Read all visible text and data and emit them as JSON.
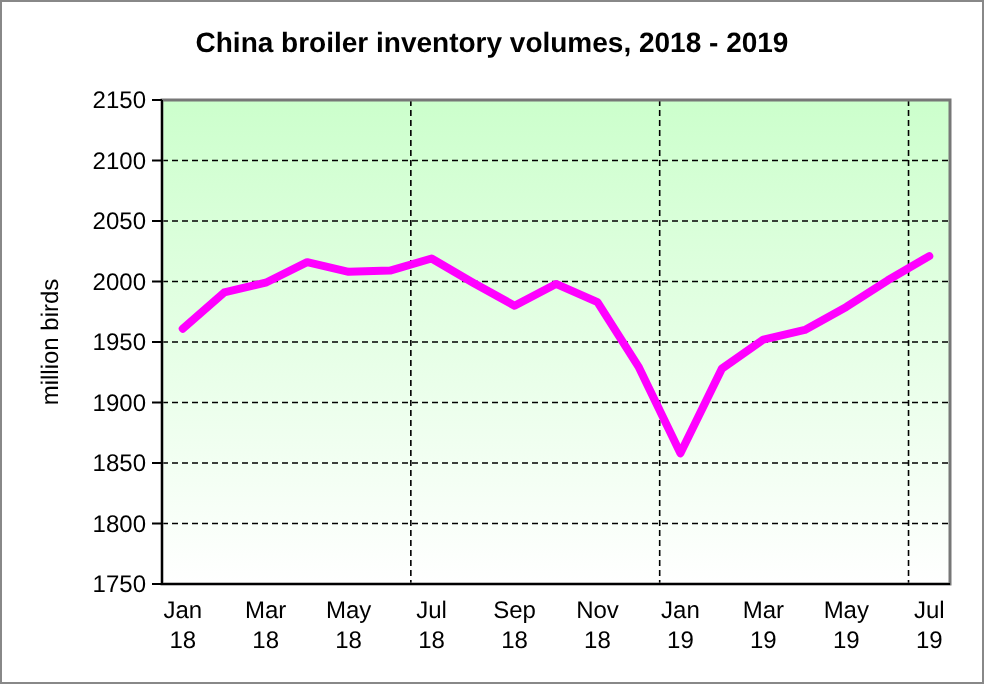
{
  "chart_data": {
    "type": "line",
    "title": "China broiler inventory volumes, 2018 - 2019",
    "ylabel": "million birds",
    "categories": [
      "Jan 18",
      null,
      "Mar 18",
      null,
      "May 18",
      null,
      "Jul 18",
      null,
      "Sep 18",
      null,
      "Nov 18",
      null,
      "Jan 19",
      null,
      "Mar 19",
      null,
      "May 19",
      null,
      "Jul 19"
    ],
    "series": [
      {
        "color": "#ff00ff",
        "values": [
          1961,
          1991,
          1999,
          2016,
          2008,
          2009,
          2019,
          1999,
          1980,
          1998,
          1983,
          1929,
          1858,
          1928,
          1952,
          1960,
          1979,
          2001,
          2021
        ]
      }
    ],
    "ylim": [
      1750,
      2150
    ],
    "yticks": [
      1750,
      1800,
      1850,
      1900,
      1950,
      2000,
      2050,
      2100,
      2150
    ],
    "grid": true,
    "marker": "none",
    "line_style": "solid"
  }
}
